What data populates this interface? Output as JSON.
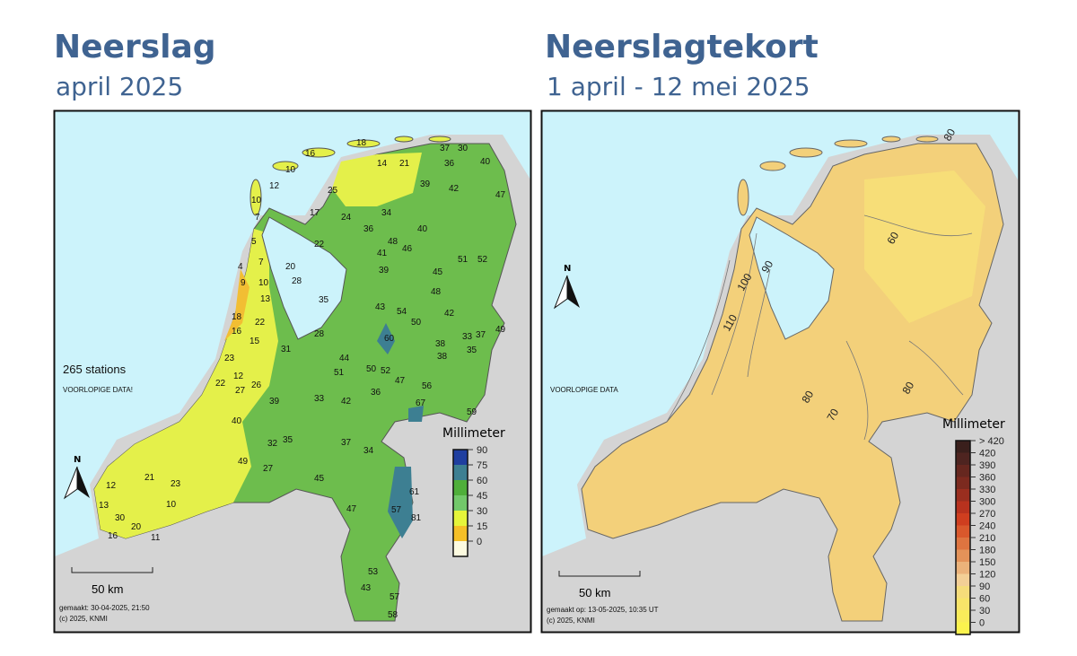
{
  "left": {
    "title": "Neerslag",
    "subtitle": "april 2025",
    "station_count": "265 stations",
    "notice": "VOORLOPIGE DATA!",
    "north": "N",
    "scale": "50 km",
    "made": "gemaakt: 30-04-2025, 21:50",
    "copyright": "(c) 2025, KNMI",
    "legend": {
      "title": "Millimeter",
      "ticks": [
        "90",
        "75",
        "60",
        "45",
        "30",
        "15",
        "0"
      ],
      "colors": [
        "#1f3fa0",
        "#3d7f92",
        "#4faf3a",
        "#72c86a",
        "#e6f53a",
        "#f5c028",
        "#fdfbe0"
      ]
    },
    "station_values": [
      "18",
      "14",
      "21",
      "37",
      "30",
      "36",
      "40",
      "16",
      "10",
      "12",
      "25",
      "39",
      "42",
      "47",
      "10",
      "7",
      "17",
      "24",
      "34",
      "36",
      "40",
      "22",
      "48",
      "46",
      "39",
      "5",
      "7",
      "41",
      "51",
      "52",
      "4",
      "20",
      "28",
      "45",
      "54",
      "43",
      "9",
      "10",
      "13",
      "35",
      "48",
      "50",
      "42",
      "49",
      "18",
      "22",
      "33",
      "28",
      "60",
      "37",
      "16",
      "15",
      "31",
      "44",
      "38",
      "35",
      "12",
      "23",
      "27",
      "22",
      "51",
      "50",
      "52",
      "47",
      "56",
      "67",
      "38",
      "26",
      "40",
      "39",
      "33",
      "42",
      "36",
      "59",
      "27",
      "32",
      "35",
      "45",
      "49",
      "12",
      "21",
      "30",
      "23",
      "37",
      "61",
      "13",
      "20",
      "10",
      "34",
      "47",
      "57",
      "81",
      "16",
      "11",
      "53",
      "43",
      "57",
      "58"
    ]
  },
  "right": {
    "title": "Neerslagtekort",
    "subtitle": "1 april - 12 mei 2025",
    "notice": "VOORLOPIGE DATA",
    "north": "N",
    "scale": "50 km",
    "made": "gemaakt op: 13-05-2025, 10:35 UT",
    "copyright": "(c) 2025, KNMI",
    "contour_labels": [
      "110",
      "100",
      "90",
      "60",
      "80",
      "70",
      "80",
      "80"
    ],
    "legend": {
      "title": "Millimeter",
      "ticks": [
        "> 420",
        "420",
        "390",
        "360",
        "330",
        "300",
        "270",
        "240",
        "210",
        "180",
        "150",
        "120",
        "90",
        "60",
        "30",
        "0"
      ],
      "colors": [
        "#3a1f1c",
        "#4e2420",
        "#66271f",
        "#7c2a1f",
        "#9a2e1f",
        "#b8321e",
        "#cf3e1f",
        "#d9582c",
        "#de7440",
        "#e39259",
        "#ebb27a",
        "#f3cf96",
        "#f5dc7a",
        "#f7e469",
        "#f9ec5a",
        "#fbf34e"
      ]
    }
  }
}
